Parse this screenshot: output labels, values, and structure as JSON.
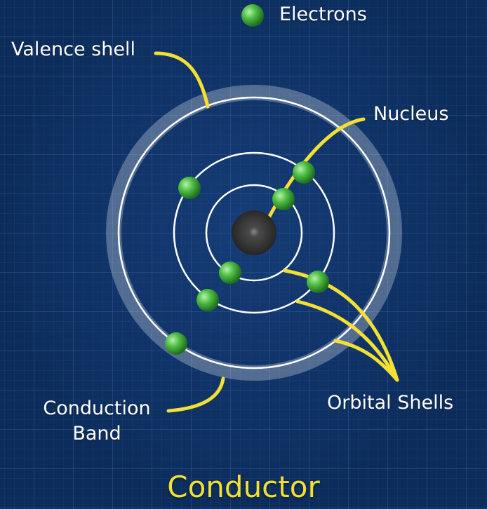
{
  "legend": {
    "electrons_label": "Electrons"
  },
  "labels": {
    "valence_shell": "Valence shell",
    "nucleus": "Nucleus",
    "orbital_shells": "Orbital Shells",
    "conduction_band_line1": "Conduction",
    "conduction_band_line2": "Band"
  },
  "title": "Conductor",
  "colors": {
    "background": "#0c2d5c",
    "grid": "#5f8fd4",
    "shell": "#ffffff",
    "electron": "#3fa83a",
    "nucleus": "#3a3a3a",
    "leader": "#f3e033",
    "title": "#f3e033"
  },
  "icons": {
    "electron": "green-sphere",
    "nucleus": "dark-sphere"
  }
}
